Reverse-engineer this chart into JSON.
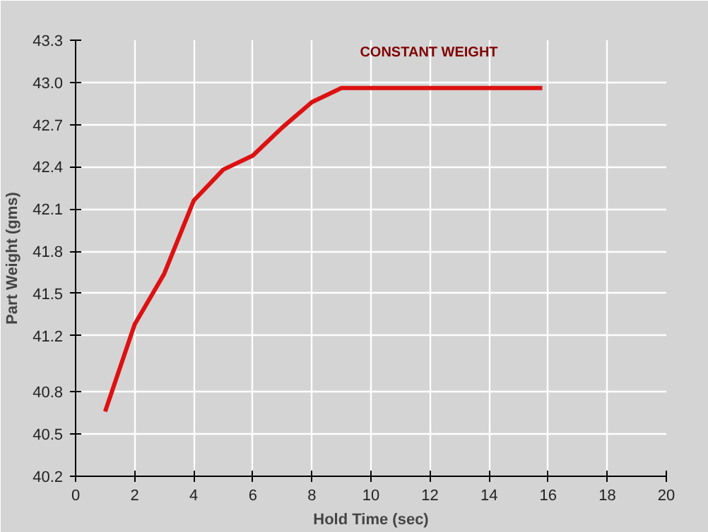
{
  "chart_data": {
    "type": "line",
    "xlabel": "Hold Time (sec)",
    "ylabel": "Part Weight (gms)",
    "x": [
      1,
      2,
      3,
      4,
      5,
      6,
      7,
      8,
      9,
      15.8
    ],
    "series": [
      {
        "color": "#dd1111",
        "values": [
          40.66,
          41.28,
          41.64,
          42.16,
          42.38,
          42.48,
          42.68,
          42.86,
          42.96,
          42.96
        ]
      }
    ],
    "xlim": [
      0,
      20
    ],
    "xticks": [
      0,
      2,
      4,
      6,
      8,
      10,
      12,
      14,
      16,
      18,
      20
    ],
    "ylim": [
      40.2,
      43.3
    ],
    "yticks": [
      40.2,
      40.5,
      40.8,
      41.2,
      41.5,
      41.8,
      42.1,
      42.4,
      42.7,
      {
        "value": 43.0,
        "label": "43.0"
      },
      43.3
    ],
    "grid": true,
    "marker": "none",
    "line_style": "solid",
    "annotations": [
      "CONSTANT WEIGHT"
    ]
  }
}
